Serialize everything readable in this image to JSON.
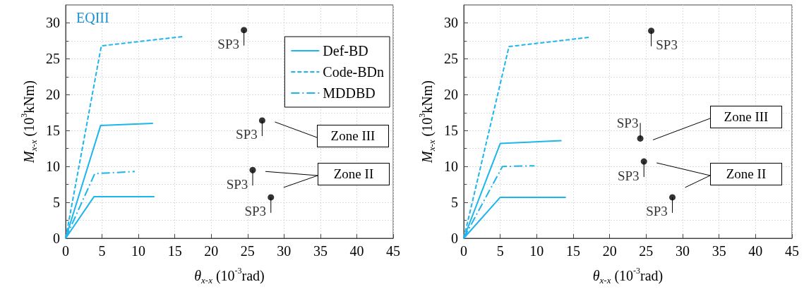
{
  "chart_data": [
    {
      "type": "line",
      "title": "EQIII",
      "xlabel": "θ$_{x-x}$ (10$^{-3}$rad)",
      "ylabel": "M$_{x-x}$ (10$^{3}$kNm)",
      "xlim": [
        0,
        45
      ],
      "xticks": [
        0,
        5,
        10,
        15,
        20,
        25,
        30,
        35,
        40,
        45
      ],
      "ylim": [
        0,
        32.5
      ],
      "yticks": [
        0,
        5,
        10,
        15,
        20,
        25,
        30
      ],
      "grid": true,
      "legend": "top right",
      "marker": "none",
      "series": [
        {
          "name": "Def-BD",
          "color": "#1cb5ec",
          "line_style": "solid",
          "x": [
            0,
            4.8,
            12
          ],
          "values": [
            0,
            15.7,
            16
          ]
        },
        {
          "name": "Code-BDn",
          "color": "#1cb5ec",
          "line_style": "dashed",
          "x": [
            0,
            4.9,
            16.2
          ],
          "values": [
            0,
            26.8,
            28.1
          ]
        },
        {
          "name": "MDDBD",
          "color": "#1cb5ec",
          "line_style": "dashdot",
          "x": [
            0,
            4,
            9.5
          ],
          "values": [
            0,
            9,
            9.3
          ]
        },
        {
          "color": "#1cb5ec",
          "line_style": "solid",
          "x": [
            0,
            3.9,
            12.2
          ],
          "values": [
            0,
            5.8,
            5.8
          ]
        },
        {
          "type": "scatter",
          "color": "#000000",
          "marker": "circle",
          "x": [
            24.5,
            27,
            25.7,
            28.2
          ],
          "values": [
            29,
            16.4,
            9.5,
            5.7
          ]
        }
      ],
      "annotations": [
        {
          "text": "SP3",
          "x": 24.5,
          "y": 29
        },
        {
          "text": "SP3",
          "x": 27,
          "y": 16.4
        },
        {
          "text": "SP3",
          "x": 25.7,
          "y": 9.5
        },
        {
          "text": "SP3",
          "x": 28.2,
          "y": 5.7
        },
        "Zone III",
        "Zone II"
      ]
    },
    {
      "type": "line",
      "xlabel": "θ$_{x-x}$ (10$^{-3}$rad)",
      "ylabel": "M$_{x-x}$ (10$^{3}$kNm)",
      "xlim": [
        0,
        45
      ],
      "xticks": [
        0,
        5,
        10,
        15,
        20,
        25,
        30,
        35,
        40,
        45
      ],
      "ylim": [
        0,
        32.5
      ],
      "yticks": [
        0,
        5,
        10,
        15,
        20,
        25,
        30
      ],
      "grid": true,
      "marker": "none",
      "series": [
        {
          "color": "#1cb5ec",
          "line_style": "solid",
          "x": [
            0,
            5,
            13.4
          ],
          "values": [
            0,
            13.2,
            13.6
          ]
        },
        {
          "color": "#1cb5ec",
          "line_style": "dashed",
          "x": [
            0,
            6.2,
            17.3
          ],
          "values": [
            0,
            26.7,
            28
          ]
        },
        {
          "color": "#1cb5ec",
          "line_style": "dashdot",
          "x": [
            0,
            5.3,
            9.7
          ],
          "values": [
            0,
            10,
            10.1
          ]
        },
        {
          "color": "#1cb5ec",
          "line_style": "solid",
          "x": [
            0,
            5,
            14
          ],
          "values": [
            0,
            5.7,
            5.7
          ]
        },
        {
          "type": "scatter",
          "color": "#000000",
          "marker": "circle",
          "x": [
            25.7,
            24.2,
            24.7,
            28.6
          ],
          "values": [
            28.9,
            13.9,
            10.7,
            5.7
          ]
        }
      ],
      "annotations": [
        {
          "text": "SP3",
          "x": 25.7,
          "y": 28.9
        },
        {
          "text": "SP3",
          "x": 24.2,
          "y": 13.9
        },
        {
          "text": "SP3",
          "x": 24.7,
          "y": 10.7
        },
        {
          "text": "SP3",
          "x": 28.6,
          "y": 5.7
        },
        "Zone III",
        "Zone II"
      ]
    }
  ]
}
